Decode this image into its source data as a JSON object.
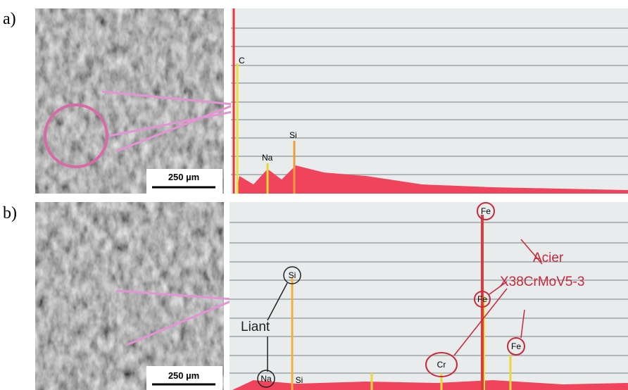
{
  "panels": [
    {
      "label": "a)",
      "scale_bar": "250 µm",
      "peaks": [
        "C",
        "Na",
        "Si"
      ]
    },
    {
      "label": "b)",
      "scale_bar": "250 µm",
      "peaks": [
        "Fe",
        "Fe",
        "Fe",
        "Si",
        "Na",
        "Si",
        "Cr"
      ],
      "annotations": {
        "binder": "Liant",
        "steel": "Acier",
        "steel_grade": "X38CrMoV5-3"
      }
    }
  ]
}
